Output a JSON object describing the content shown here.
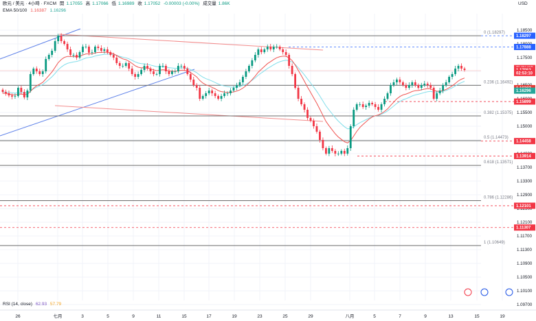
{
  "header": {
    "symbol_line": "欧元 / 美元 · 4小時 · FXCM",
    "open_label": "開",
    "open": "1.17055",
    "high_label": "高",
    "high": "1.17066",
    "low_label": "低",
    "low": "1.16989",
    "close_label": "收",
    "close": "1.17052",
    "change": "-0.00003 (-0.00%)",
    "volume_label": "成交量",
    "volume": "1.86K",
    "ema_label": "EMA 50/100",
    "ema50": "1.16387",
    "ema100": "1.16296",
    "ema50_color": "#ef5350",
    "ema100_color": "#4dd0e1"
  },
  "currency": "USD",
  "rsi": {
    "label": "RSI (14, close)",
    "value1": "62.93",
    "value2": "57.79",
    "value1_color": "#7e57c2",
    "value2_color": "#f5a623"
  },
  "axis": {
    "y_ticks": [
      "1.18500",
      "1.18000",
      "1.17500",
      "1.17000",
      "1.16500",
      "1.16000",
      "1.15500",
      "1.15000",
      "1.14500",
      "1.14000",
      "1.13700",
      "1.13300",
      "1.12900",
      "1.12500",
      "1.12100",
      "1.11700",
      "1.11300",
      "1.10900",
      "1.10500",
      "1.10100",
      "1.09700"
    ],
    "x_ticks": [
      "26",
      "七月",
      "3",
      "5",
      "9",
      "11",
      "15",
      "17",
      "19",
      "23",
      "25",
      "29",
      "八月",
      "5",
      "7",
      "9",
      "13",
      "15",
      "19"
    ]
  },
  "fib_levels": [
    {
      "label": "0 (1.18297)",
      "price": 1.18297
    },
    {
      "label": "0.236 (1.16492)",
      "price": 1.16492
    },
    {
      "label": "0.382 (1.15375)",
      "price": 1.15375
    },
    {
      "label": "0.5 (1.14473)",
      "price": 1.14473
    },
    {
      "label": "0.618 (1.13571)",
      "price": 1.13571
    },
    {
      "label": "0.786 (1.12286)",
      "price": 1.12286
    },
    {
      "label": "1 (1.10649)",
      "price": 1.10649
    }
  ],
  "price_tags": [
    {
      "text": "1.18297",
      "price": 1.18297,
      "color": "#2962ff"
    },
    {
      "text": "1.17888",
      "price": 1.17888,
      "color": "#2962ff"
    },
    {
      "text": "EURUSD",
      "price": 1.1712,
      "color": "#f23645"
    },
    {
      "text": "1.17052",
      "price": 1.17052,
      "color": "#f23645"
    },
    {
      "text": "02:53:10",
      "price": 1.1694,
      "color": "#f23645"
    },
    {
      "text": "1.16387",
      "price": 1.16387,
      "color": "#e53935"
    },
    {
      "text": "1.16296",
      "price": 1.16296,
      "color": "#26a69a"
    },
    {
      "text": "1.15899",
      "price": 1.15899,
      "color": "#f23645"
    },
    {
      "text": "1.14458",
      "price": 1.14458,
      "color": "#f23645"
    },
    {
      "text": "1.13914",
      "price": 1.13914,
      "color": "#f23645"
    },
    {
      "text": "1.12101",
      "price": 1.12101,
      "color": "#f23645"
    },
    {
      "text": "1.11307",
      "price": 1.11307,
      "color": "#f23645"
    }
  ],
  "chart_data": {
    "type": "candlestick",
    "up_color": "#089981",
    "down_color": "#f23645",
    "ylim": [
      1.097,
      1.185
    ],
    "close": [
      1.1625,
      1.162,
      1.1612,
      1.1608,
      1.161,
      1.164,
      1.1625,
      1.1605,
      1.163,
      1.169,
      1.171,
      1.17,
      1.169,
      1.17,
      1.1745,
      1.176,
      1.1775,
      1.181,
      1.183,
      1.181,
      1.18,
      1.178,
      1.176,
      1.176,
      1.175,
      1.177,
      1.179,
      1.179,
      1.1768,
      1.177,
      1.179,
      1.1785,
      1.1775,
      1.178,
      1.177,
      1.176,
      1.175,
      1.173,
      1.172,
      1.172,
      1.173,
      1.171,
      1.169,
      1.168,
      1.169,
      1.1705,
      1.172,
      1.171,
      1.17,
      1.169,
      1.169,
      1.172,
      1.172,
      1.17,
      1.169,
      1.17,
      1.17,
      1.172,
      1.172,
      1.171,
      1.169,
      1.167,
      1.165,
      1.164,
      1.16,
      1.161,
      1.162,
      1.163,
      1.162,
      1.161,
      1.16,
      1.161,
      1.162,
      1.162,
      1.163,
      1.164,
      1.165,
      1.166,
      1.168,
      1.17,
      1.172,
      1.174,
      1.176,
      1.178,
      1.177,
      1.178,
      1.179,
      1.178,
      1.179,
      1.179,
      1.178,
      1.177,
      1.176,
      1.172,
      1.169,
      1.164,
      1.16,
      1.158,
      1.156,
      1.153,
      1.152,
      1.15,
      1.148,
      1.145,
      1.142,
      1.14,
      1.142,
      1.141,
      1.14,
      1.14,
      1.141,
      1.14,
      1.142,
      1.15,
      1.156,
      1.158,
      1.158,
      1.157,
      1.1575,
      1.1585,
      1.158,
      1.157,
      1.156,
      1.158,
      1.16,
      1.162,
      1.165,
      1.166,
      1.167,
      1.166,
      1.165,
      1.164,
      1.165,
      1.166,
      1.165,
      1.164,
      1.165,
      1.1655,
      1.165,
      1.164,
      1.16,
      1.162,
      1.163,
      1.165,
      1.166,
      1.168,
      1.169,
      1.171,
      1.172,
      1.171,
      1.1705
    ]
  }
}
